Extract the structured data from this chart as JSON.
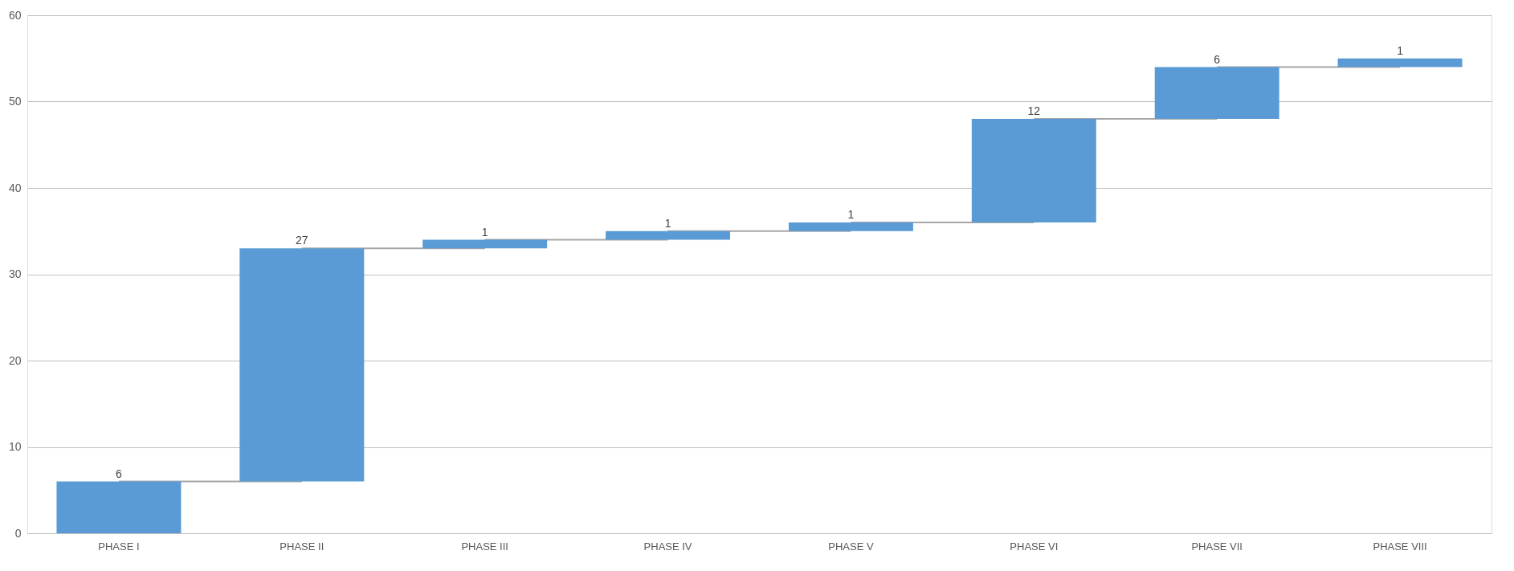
{
  "chart_data": {
    "type": "bar",
    "categories": [
      "PHASE I",
      "PHASE II",
      "PHASE III",
      "PHASE IV",
      "PHASE V",
      "PHASE VI",
      "PHASE VII",
      "PHASE VIII"
    ],
    "values": [
      6,
      27,
      1,
      1,
      1,
      12,
      6,
      1
    ],
    "base": [
      0,
      6,
      33,
      34,
      35,
      36,
      48,
      54
    ],
    "color": "#5b9bd5",
    "ylim": [
      0,
      60
    ],
    "yticks": [
      0,
      10,
      20,
      30,
      40,
      50,
      60
    ],
    "grid": "y",
    "data_labels": true
  }
}
